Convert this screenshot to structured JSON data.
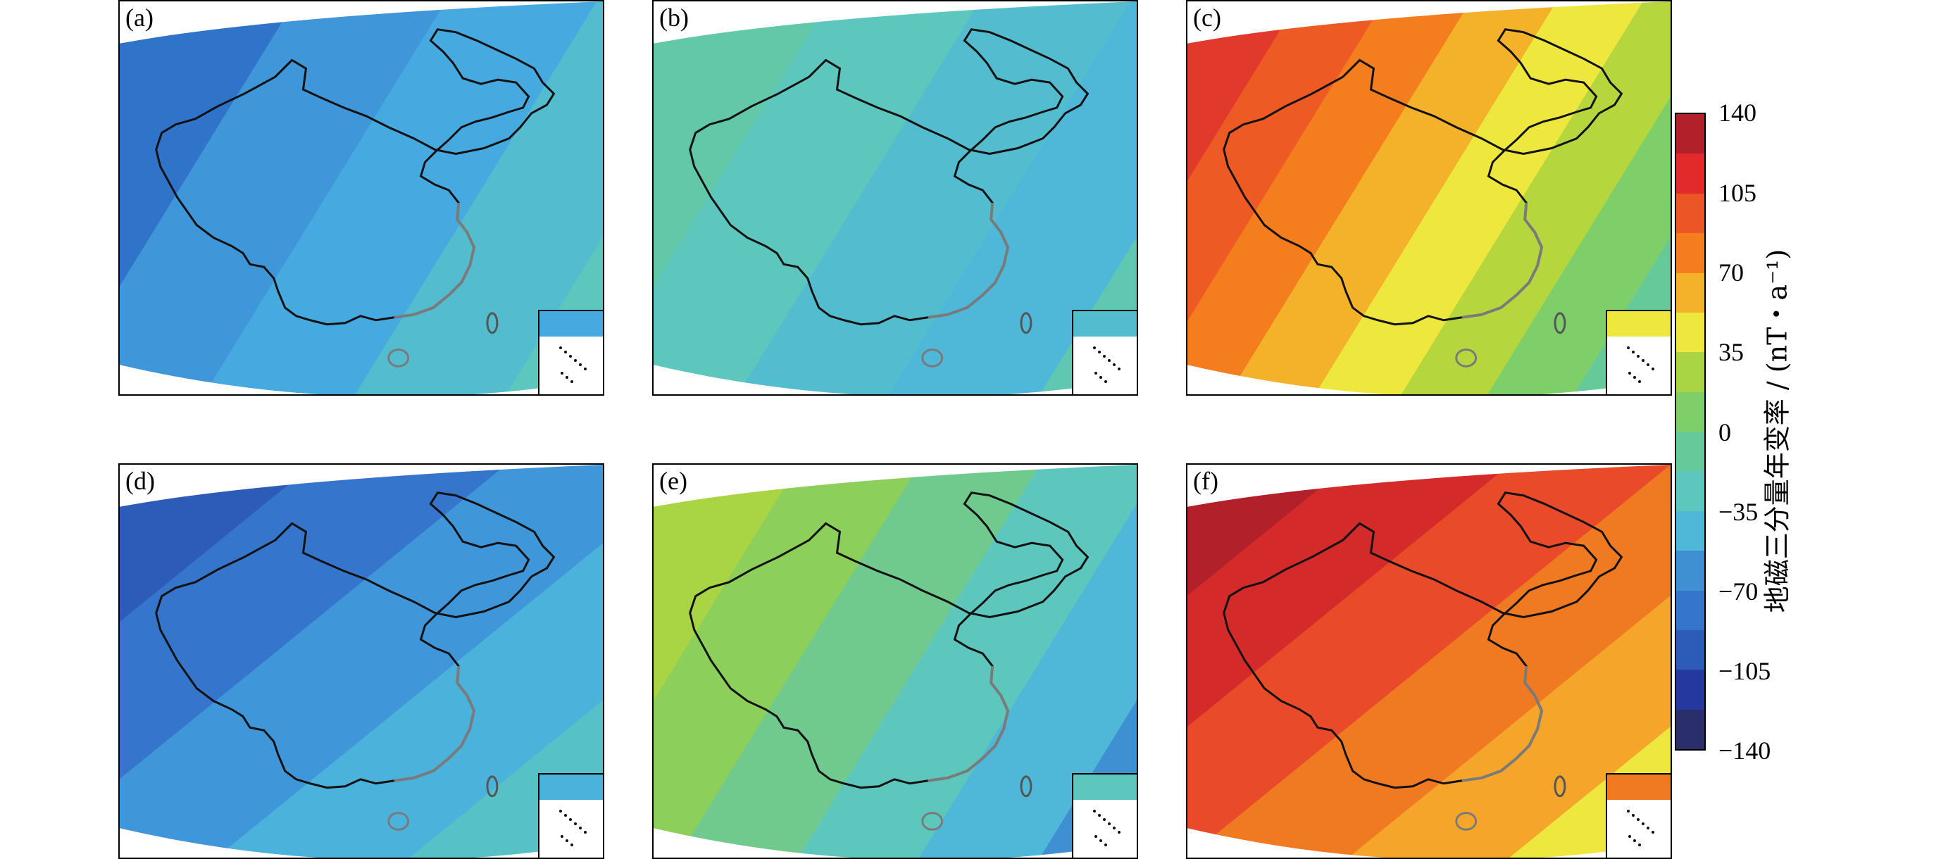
{
  "panels": [
    {
      "label": "(a)",
      "colors": [
        "#2f74c9",
        "#3f96d8",
        "#46a9df",
        "#54bccf",
        "#5ec7bd"
      ]
    },
    {
      "label": "(b)",
      "colors": [
        "#62c8a8",
        "#5ec7bd",
        "#54bccf",
        "#4fb7d8",
        "#60c8b0"
      ]
    },
    {
      "label": "(c)",
      "colors": [
        "#e13a2c",
        "#ee5a24",
        "#f47d1e",
        "#f4b22a",
        "#eee83e",
        "#b6d63d",
        "#7ecf6a",
        "#66c99a"
      ]
    },
    {
      "label": "(d)",
      "colors": [
        "#2c5cb8",
        "#3575cc",
        "#3f96d8",
        "#4bb2db",
        "#56c1c7",
        "#5ec7bd"
      ]
    },
    {
      "label": "(e)",
      "colors": [
        "#a9d443",
        "#8ccf5a",
        "#70c98d",
        "#5ec7bd",
        "#4fb7d8",
        "#3f8fd3"
      ]
    },
    {
      "label": "(f)",
      "colors": [
        "#b2202a",
        "#d42a2a",
        "#e84a2a",
        "#f07a22",
        "#f4a52a",
        "#eee83e",
        "#b6d63d"
      ]
    }
  ],
  "colorbar": {
    "title": "地磁三分量年变率 / (nT・a⁻¹)",
    "ticks": [
      "140",
      "105",
      "70",
      "35",
      "0",
      "−35",
      "−70",
      "−105",
      "−140"
    ],
    "colors": [
      "#b2202a",
      "#e32a2a",
      "#ec5526",
      "#f47d1e",
      "#f4b22a",
      "#eee83e",
      "#a9d443",
      "#7ecf6a",
      "#66c99a",
      "#5ec7bd",
      "#4fb7d8",
      "#3f8fd3",
      "#3575cc",
      "#2c5cb8",
      "#2438a0",
      "#2a2e6a"
    ]
  }
}
